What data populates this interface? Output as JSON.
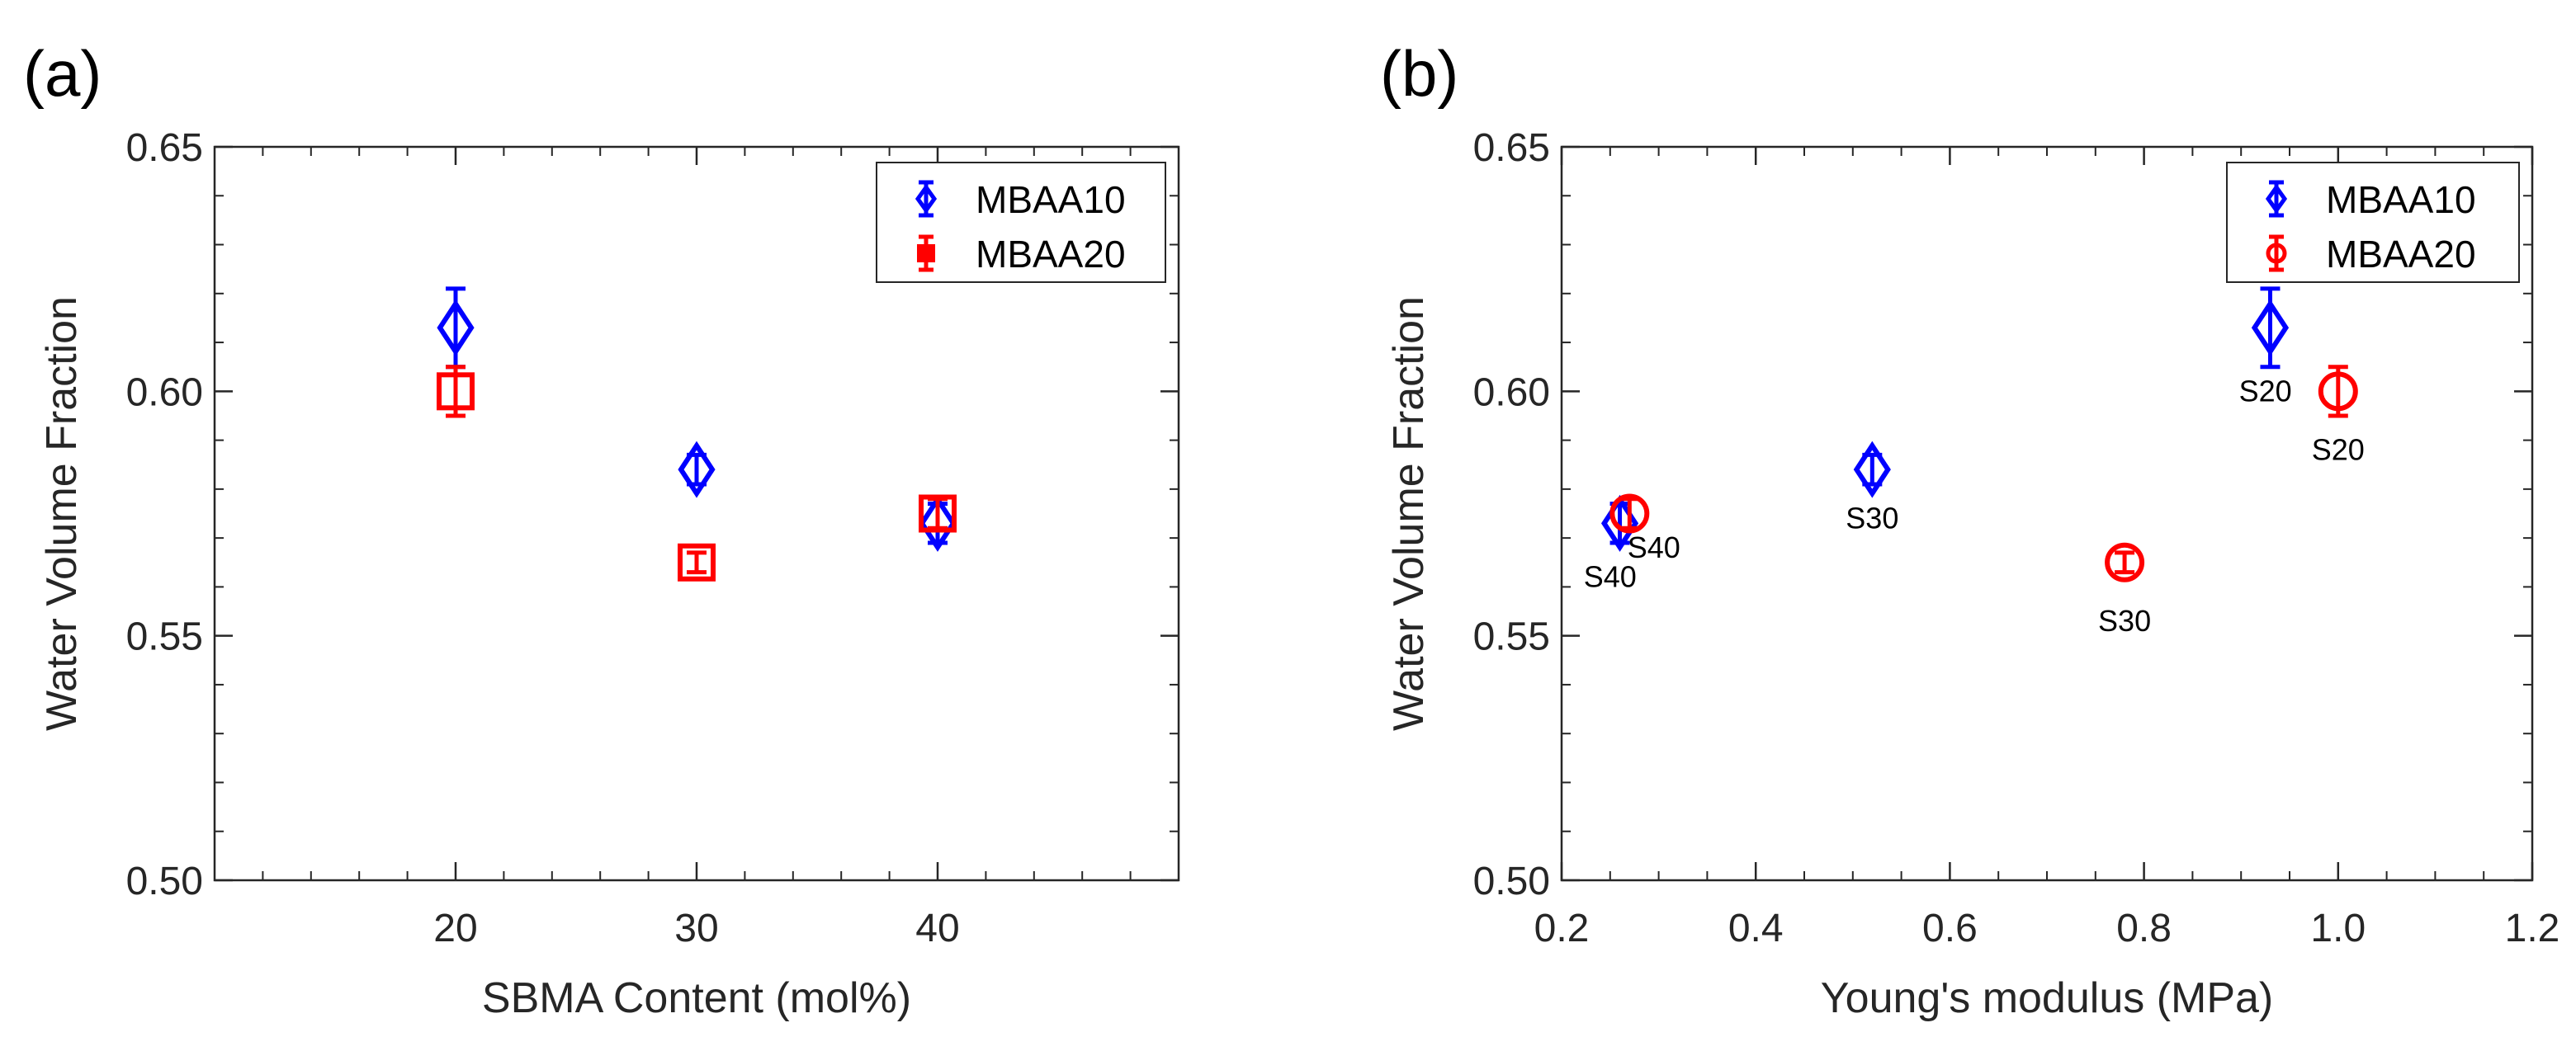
{
  "chart_data": [
    {
      "panel_label": "(a)",
      "type": "scatter",
      "xlabel": "SBMA Content (mol%)",
      "ylabel": "Water Volume Fraction",
      "xlim": [
        10,
        50
      ],
      "ylim": [
        0.5,
        0.65
      ],
      "xticks": [
        20,
        30,
        40
      ],
      "xtick_labels": [
        "20",
        "30",
        "40"
      ],
      "xminor_step": 2,
      "yticks": [
        0.5,
        0.55,
        0.6,
        0.65
      ],
      "ytick_labels": [
        "0.50",
        "0.55",
        "0.60",
        "0.65"
      ],
      "yminor_step": 0.01,
      "grid": false,
      "legend_position": "top-right",
      "series": [
        {
          "name": "MBAA10",
          "color": "#0000ff",
          "marker": "diamond",
          "points": [
            {
              "x": 20,
              "y": 0.613,
              "err": 0.008
            },
            {
              "x": 30,
              "y": 0.584,
              "err": 0.003
            },
            {
              "x": 40,
              "y": 0.573,
              "err": 0.004
            }
          ]
        },
        {
          "name": "MBAA20",
          "color": "#ff0000",
          "marker": "square",
          "points": [
            {
              "x": 20,
              "y": 0.6,
              "err": 0.005
            },
            {
              "x": 30,
              "y": 0.565,
              "err": 0.002
            },
            {
              "x": 40,
              "y": 0.575,
              "err": 0.003
            }
          ]
        }
      ]
    },
    {
      "panel_label": "(b)",
      "type": "scatter",
      "xlabel": "Young's modulus (MPa)",
      "ylabel": "Water Volume Fraction",
      "xlim": [
        0.2,
        1.2
      ],
      "ylim": [
        0.5,
        0.65
      ],
      "xticks": [
        0.2,
        0.4,
        0.6,
        0.8,
        1.0,
        1.2
      ],
      "xtick_labels": [
        "0.2",
        "0.4",
        "0.6",
        "0.8",
        "1.0",
        "1.2"
      ],
      "xminor_step": 0.05,
      "yticks": [
        0.5,
        0.55,
        0.6,
        0.65
      ],
      "ytick_labels": [
        "0.50",
        "0.55",
        "0.60",
        "0.65"
      ],
      "yminor_step": 0.01,
      "grid": false,
      "legend_position": "top-right",
      "series": [
        {
          "name": "MBAA10",
          "color": "#0000ff",
          "marker": "diamond",
          "points": [
            {
              "x": 0.26,
              "y": 0.573,
              "err": 0.004,
              "label": "S40",
              "label_x": 0.25,
              "label_y": 0.562
            },
            {
              "x": 0.52,
              "y": 0.584,
              "err": 0.003,
              "label": "S30",
              "label_x": 0.52,
              "label_y": 0.574
            },
            {
              "x": 0.93,
              "y": 0.613,
              "err": 0.008,
              "label": "S20",
              "label_x": 0.925,
              "label_y": 0.6
            }
          ]
        },
        {
          "name": "MBAA20",
          "color": "#ff0000",
          "marker": "circle",
          "points": [
            {
              "x": 0.27,
              "y": 0.575,
              "err": 0.003,
              "label": "S40",
              "label_x": 0.295,
              "label_y": 0.568
            },
            {
              "x": 0.78,
              "y": 0.565,
              "err": 0.002,
              "label": "S30",
              "label_x": 0.78,
              "label_y": 0.553
            },
            {
              "x": 1.0,
              "y": 0.6,
              "err": 0.005,
              "label": "S20",
              "label_x": 1.0,
              "label_y": 0.588
            }
          ]
        }
      ]
    }
  ]
}
